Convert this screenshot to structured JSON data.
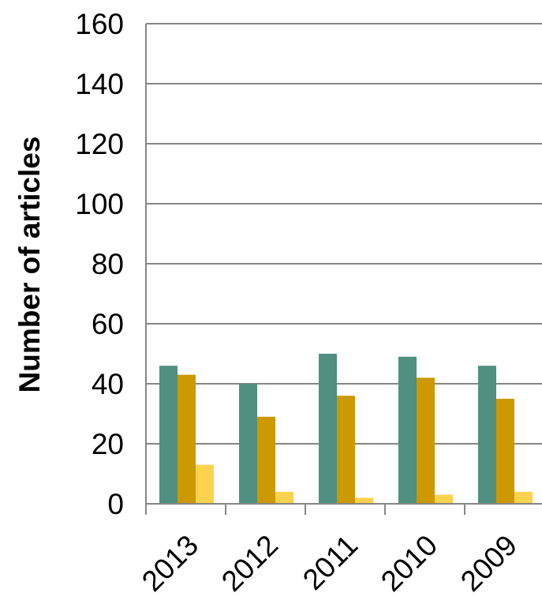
{
  "chart_data": {
    "type": "bar",
    "title": "",
    "xlabel": "",
    "ylabel": "Number of articles",
    "ylim": [
      0,
      160
    ],
    "yticks": [
      0,
      20,
      40,
      60,
      80,
      100,
      120,
      140,
      160
    ],
    "grid": true,
    "legend": "none",
    "categories": [
      "2013",
      "2012",
      "2011",
      "2010",
      "2009"
    ],
    "series": [
      {
        "color": "#4F9080",
        "values": [
          46,
          40,
          50,
          49,
          46
        ]
      },
      {
        "color": "#CC9900",
        "values": [
          43,
          29,
          36,
          42,
          35
        ]
      },
      {
        "color": "#FFD24D",
        "values": [
          13,
          4,
          2,
          3,
          4
        ]
      }
    ]
  }
}
